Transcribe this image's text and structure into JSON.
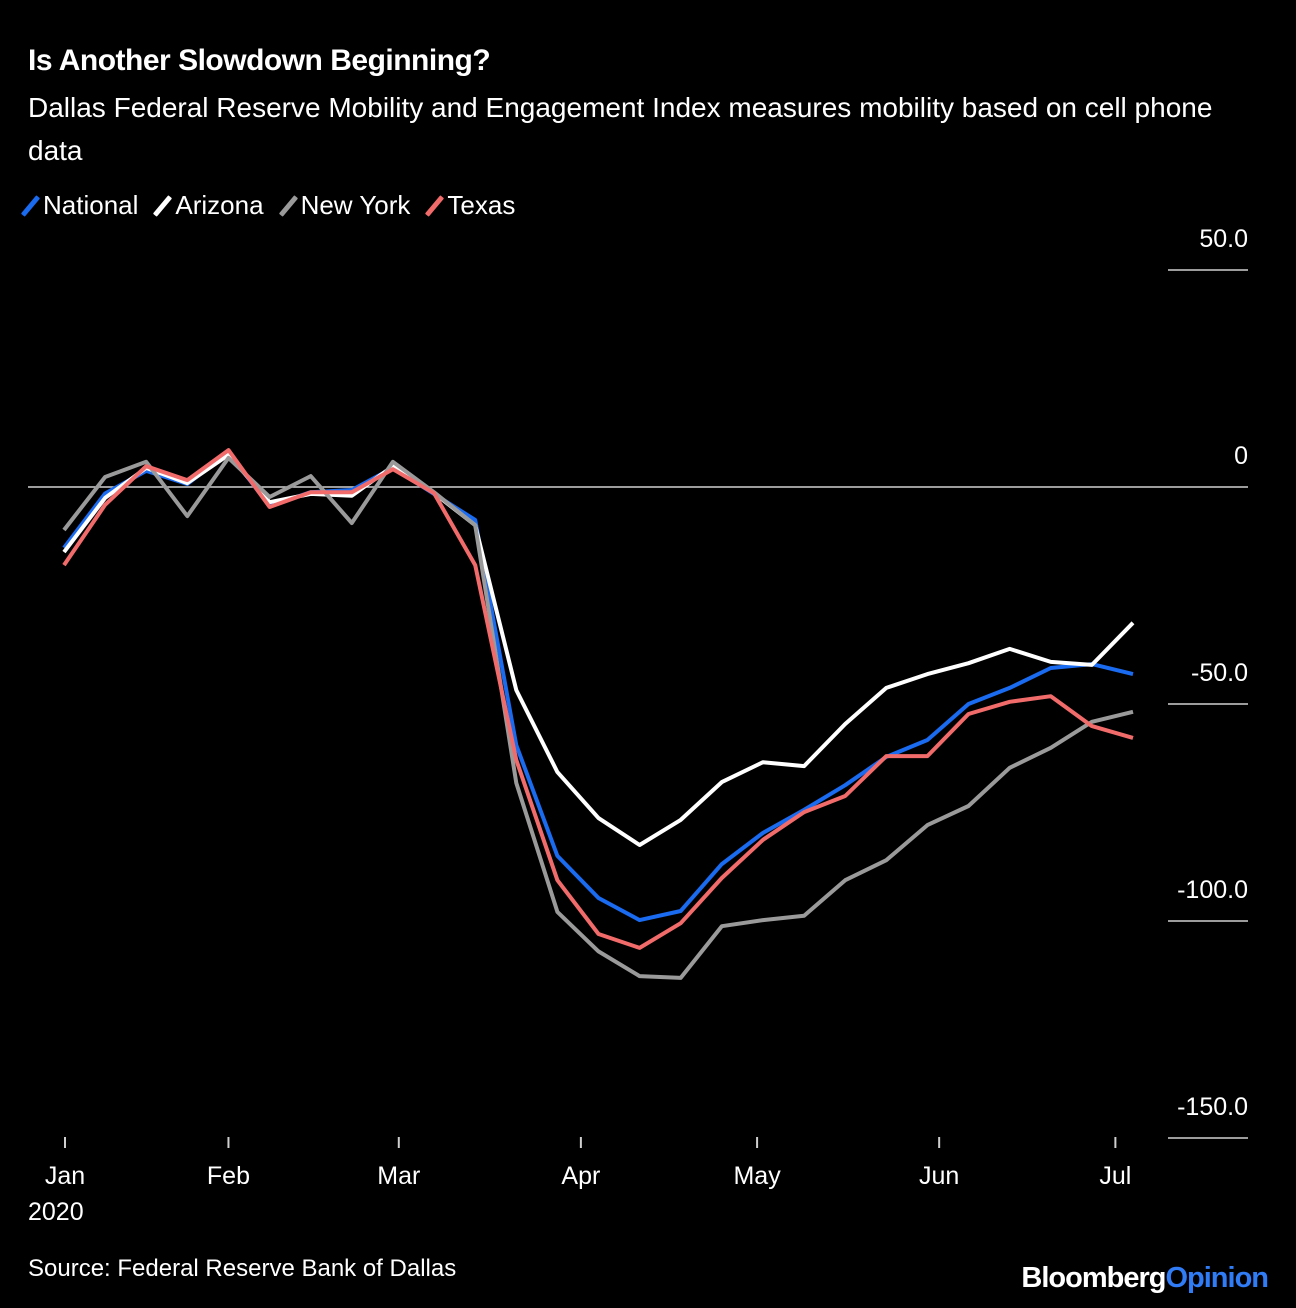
{
  "title": "Is Another Slowdown Beginning?",
  "subtitle": "Dallas Federal Reserve Mobility and Engagement Index measures mobility based on cell phone data",
  "source": "Source: Federal Reserve Bank of Dallas",
  "logo": {
    "part1": "Bloomberg",
    "part2": "Opinion",
    "color1": "#ffffff",
    "color2": "#2f7cf6"
  },
  "chart_data": {
    "type": "line",
    "title": "Is Another Slowdown Beginning?",
    "x_start": "2020-01-04",
    "x_interval_days": 7,
    "x_tick_labels": [
      "Jan",
      "Feb",
      "Mar",
      "Apr",
      "May",
      "Jun",
      "Jul"
    ],
    "x_tick_dates": [
      "2020-01-01",
      "2020-02-01",
      "2020-03-01",
      "2020-04-01",
      "2020-05-01",
      "2020-06-01",
      "2020-07-01"
    ],
    "x_year_label": "2020",
    "y_ticks": [
      50,
      0,
      -50,
      -100,
      -150
    ],
    "y_tick_labels": [
      "50.0",
      "0",
      "-50.0",
      "-100.0",
      "-150.0"
    ],
    "ylim": [
      -150,
      50
    ],
    "y_axis_side": "right",
    "grid": false,
    "legend_position": "top-left",
    "series": [
      {
        "name": "National",
        "color": "#1a6bf0",
        "values": [
          -14,
          -1.5,
          3.7,
          0.7,
          8,
          -4.4,
          -1.2,
          -0.7,
          4.4,
          -1.6,
          -7.6,
          -59.5,
          -85,
          -94.7,
          -99.8,
          -97.7,
          -86.9,
          -79.7,
          -74.4,
          -68.7,
          -62.2,
          -58.3,
          -50,
          -46.3,
          -41.7,
          -40.8,
          -43.1
        ]
      },
      {
        "name": "Arizona",
        "color": "#ffffff",
        "values": [
          -15,
          -2.5,
          4.4,
          0.9,
          7.4,
          -3.5,
          -1.6,
          -2,
          4.8,
          -1.4,
          -8.8,
          -46.8,
          -65.7,
          -76.3,
          -82.5,
          -76.7,
          -68,
          -63.4,
          -64.3,
          -54.6,
          -46.3,
          -43.1,
          -40.6,
          -37.3,
          -40.3,
          -41,
          -31.3
        ]
      },
      {
        "name": "New York",
        "color": "#9a9a9a",
        "values": [
          -9.9,
          2.3,
          5.8,
          -6.7,
          6.7,
          -2.3,
          2.5,
          -8.3,
          5.8,
          -1.2,
          -8.8,
          -68.2,
          -97.9,
          -107,
          -112.7,
          -113.1,
          -101.2,
          -99.8,
          -98.8,
          -90.6,
          -86,
          -77.9,
          -73.5,
          -64.7,
          -60.1,
          -54.1,
          -51.8
        ]
      },
      {
        "name": "Texas",
        "color": "#f26b6b",
        "values": [
          -18,
          -4.1,
          4.8,
          1.6,
          8.5,
          -4.6,
          -1.2,
          -1.2,
          4.1,
          -1.4,
          -18,
          -62.9,
          -90.6,
          -103,
          -106.2,
          -100.5,
          -90.1,
          -81.3,
          -74.9,
          -71.2,
          -62,
          -62,
          -52.3,
          -49.5,
          -48.2,
          -55.1,
          -57.8
        ]
      }
    ]
  }
}
